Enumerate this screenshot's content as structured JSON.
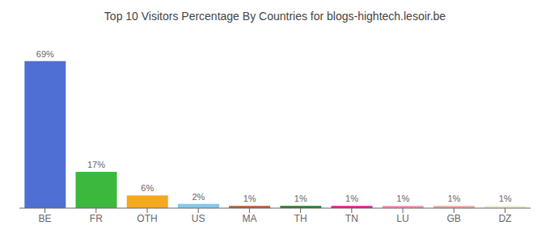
{
  "chart_data": {
    "type": "bar",
    "title": "Top 10 Visitors Percentage By Countries for blogs-hightech.lesoir.be",
    "categories": [
      "BE",
      "FR",
      "OTH",
      "US",
      "MA",
      "TH",
      "TN",
      "LU",
      "GB",
      "DZ"
    ],
    "values": [
      69,
      17,
      6,
      2,
      1,
      1,
      1,
      1,
      1,
      1
    ],
    "value_labels": [
      "69%",
      "17%",
      "6%",
      "2%",
      "1%",
      "1%",
      "1%",
      "1%",
      "1%",
      "1%"
    ],
    "colors": [
      "#4f6fd4",
      "#3cb83c",
      "#f5a820",
      "#82c8ec",
      "#b85c30",
      "#2a7a30",
      "#e8188a",
      "#f090b0",
      "#f0a898",
      "#f0ecc8"
    ],
    "ylim": [
      0,
      78
    ],
    "data_labels": true,
    "tick_labels": "x",
    "grid": false
  }
}
